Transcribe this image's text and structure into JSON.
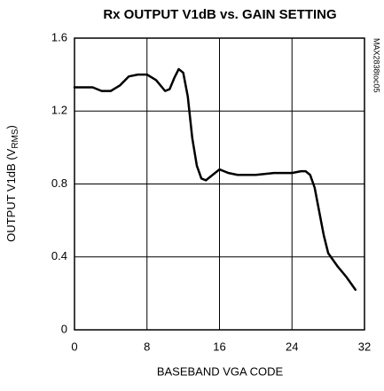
{
  "chart_data": {
    "type": "line",
    "title": "Rx OUTPUT V1dB vs. GAIN SETTING",
    "x_label": "BASEBAND VGA CODE",
    "y_label_parts": [
      "OUTPUT V1dB (V",
      "RMS",
      ")"
    ],
    "note": "MAX2838toc05",
    "x": [
      0,
      2,
      3,
      4,
      5,
      6,
      7,
      8,
      9,
      10,
      10.5,
      11,
      11.5,
      12,
      12.5,
      13,
      13.5,
      14,
      14.5,
      15,
      16,
      17,
      18,
      20,
      22,
      24,
      25,
      25.5,
      26,
      26.5,
      27,
      27.5,
      28,
      29,
      30,
      31
    ],
    "series": [
      {
        "name": "V1dB",
        "color": "#000000",
        "values": [
          1.33,
          1.33,
          1.31,
          1.31,
          1.34,
          1.39,
          1.4,
          1.4,
          1.37,
          1.31,
          1.32,
          1.38,
          1.43,
          1.41,
          1.28,
          1.05,
          0.9,
          0.83,
          0.82,
          0.84,
          0.88,
          0.86,
          0.85,
          0.85,
          0.86,
          0.86,
          0.87,
          0.87,
          0.85,
          0.78,
          0.65,
          0.52,
          0.42,
          0.35,
          0.29,
          0.22
        ]
      }
    ],
    "xlim": [
      0,
      32
    ],
    "xticks": [
      0,
      8,
      16,
      24,
      32
    ],
    "ylim": [
      0,
      1.6
    ],
    "yticks": [
      {
        "value": 0,
        "label": "0"
      },
      0.4,
      0.8,
      1.2,
      1.6
    ],
    "grid": true
  }
}
